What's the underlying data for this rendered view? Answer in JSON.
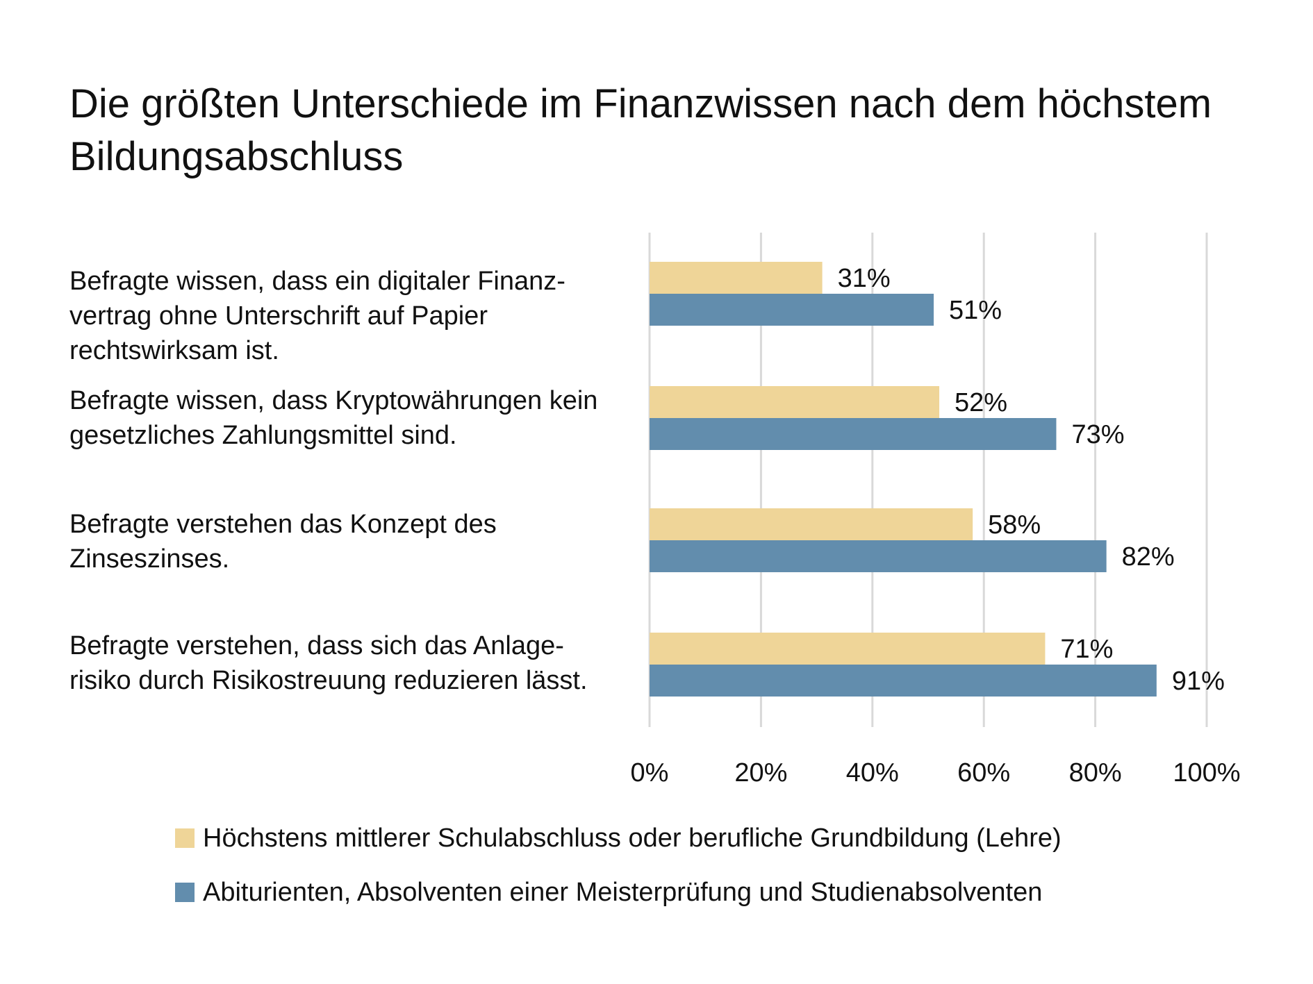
{
  "colors": {
    "series1": "#EFD598",
    "series2": "#628DAD",
    "grid": "#D9D9D9"
  },
  "chart_data": {
    "type": "bar",
    "orientation": "horizontal",
    "title": "Die größten Unterschiede im Finanzwissen nach dem höchstem Bildungsabschluss",
    "categories": [
      "Befragte wissen, dass ein digitaler Finanz-vertrag ohne Unterschrift auf Papier rechtswirksam ist.",
      "Befragte wissen, dass Kryptowährungen kein gesetzliches Zahlungsmittel sind.",
      "Befragte verstehen das Konzept des Zinseszinses.",
      "Befragte verstehen, dass sich das Anlage-risiko durch Risikostreuung reduzieren lässt."
    ],
    "series": [
      {
        "name": "Höchstens mittlerer Schulabschluss oder berufliche Grundbildung (Lehre)",
        "values": [
          31,
          52,
          58,
          71
        ],
        "labels": [
          "31%",
          "52%",
          "58%",
          "71%"
        ]
      },
      {
        "name": "Abiturienten, Absolventen einer Meisterprüfung und Studienabsolventen",
        "values": [
          51,
          73,
          82,
          91
        ],
        "labels": [
          "51%",
          "73%",
          "82%",
          "91%"
        ]
      }
    ],
    "xlim": [
      0,
      100
    ],
    "xticks": [
      "0%",
      "20%",
      "40%",
      "60%",
      "80%",
      "100%"
    ],
    "grid": true,
    "legend_position": "bottom"
  }
}
